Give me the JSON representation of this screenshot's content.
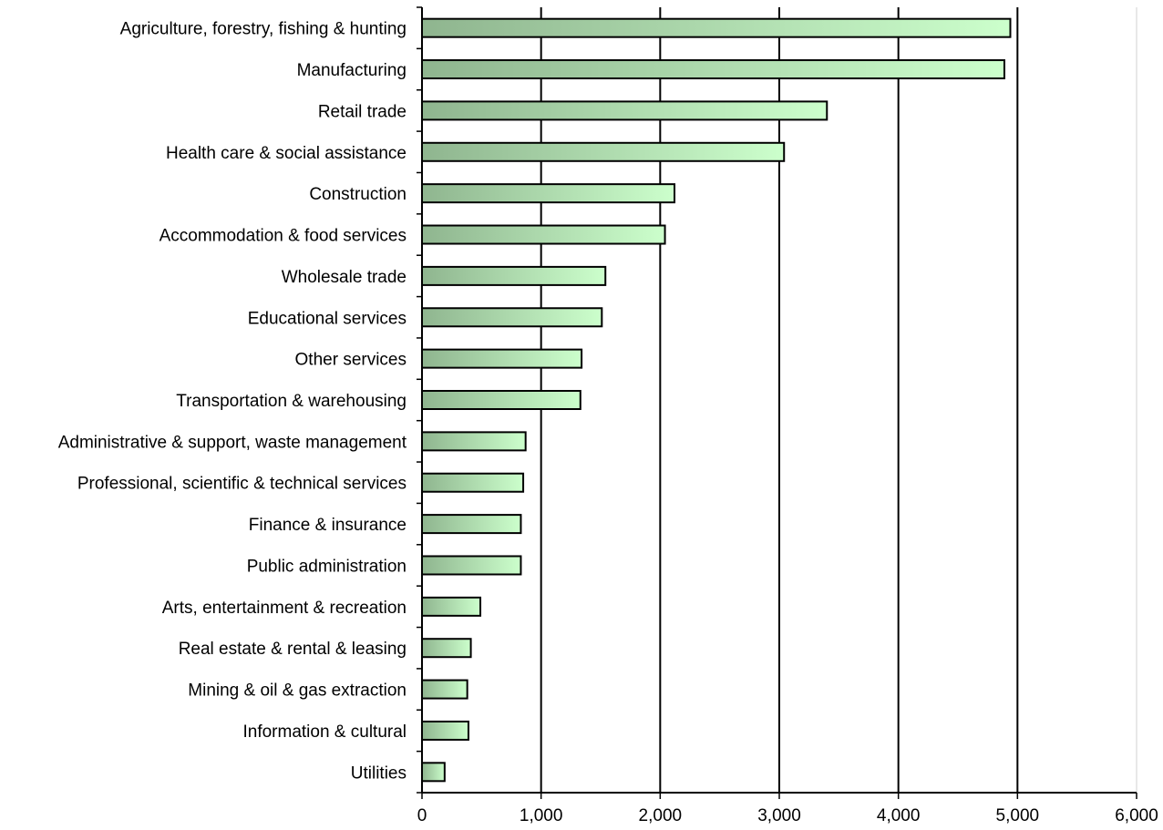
{
  "chart_data": {
    "type": "bar",
    "orientation": "horizontal",
    "title": "",
    "xlabel": "",
    "ylabel": "",
    "xlim": [
      0,
      6000
    ],
    "x_ticks": [
      "0",
      "1,000",
      "2,000",
      "3,000",
      "4,000",
      "5,000",
      "6,000"
    ],
    "grid": "vertical gridlines",
    "legend": "none",
    "bar_gradient": [
      "#8fb58f",
      "#ccffcc"
    ],
    "categories": [
      "Agriculture, forestry, fishing & hunting",
      "Manufacturing",
      "Retail trade",
      "Health care & social assistance",
      "Construction",
      "Accommodation & food services",
      "Wholesale trade",
      "Educational services",
      "Other services",
      "Transportation & warehousing",
      "Administrative & support, waste management",
      "Professional, scientific & technical services",
      "Finance & insurance",
      "Public administration",
      "Arts, entertainment & recreation",
      "Real estate & rental & leasing",
      "Mining & oil & gas extraction",
      "Information & cultural",
      "Utilities"
    ],
    "values": [
      4940,
      4890,
      3400,
      3040,
      2120,
      2040,
      1540,
      1510,
      1340,
      1330,
      870,
      850,
      830,
      830,
      490,
      410,
      380,
      390,
      190
    ]
  }
}
